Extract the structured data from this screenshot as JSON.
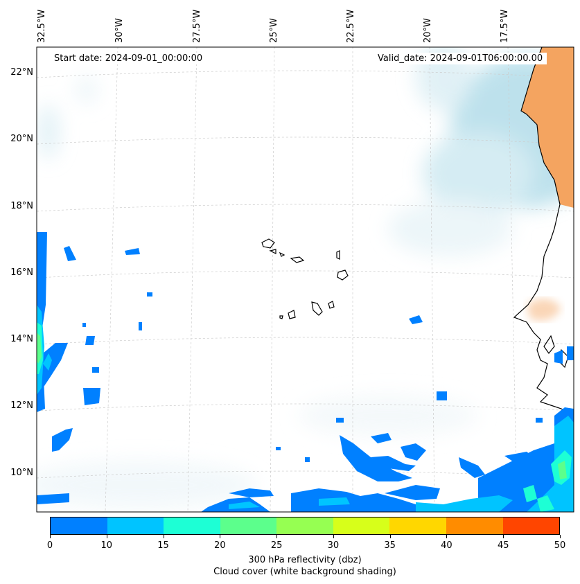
{
  "header": {
    "start_date": "Start date: 2024-09-01_00:00:00",
    "valid_date": "Valid_date: 2024-09-01T06:00:00.00"
  },
  "longitude_labels": [
    "32.5°W",
    "30°W",
    "27.5°W",
    "25°W",
    "22.5°W",
    "20°W",
    "17.5°W"
  ],
  "latitude_labels": [
    "22°N",
    "20°N",
    "18°N",
    "16°N",
    "14°N",
    "12°N",
    "10°N"
  ],
  "colorbar": {
    "ticks": [
      "0",
      "10",
      "15",
      "20",
      "25",
      "30",
      "35",
      "40",
      "45",
      "50"
    ],
    "colors": [
      "#0080ff",
      "#00c4ff",
      "#1dffd5",
      "#5cff8c",
      "#96ff52",
      "#d7ff1a",
      "#ffd700",
      "#ff8c00",
      "#ff4500"
    ],
    "title_line1": "300 hPa reflectivity (dbz)",
    "title_line2": "Cloud cover (white background shading)"
  },
  "colors": {
    "land": "#f4a460",
    "cloud": "#a8d8e6",
    "coastline": "#000000"
  }
}
